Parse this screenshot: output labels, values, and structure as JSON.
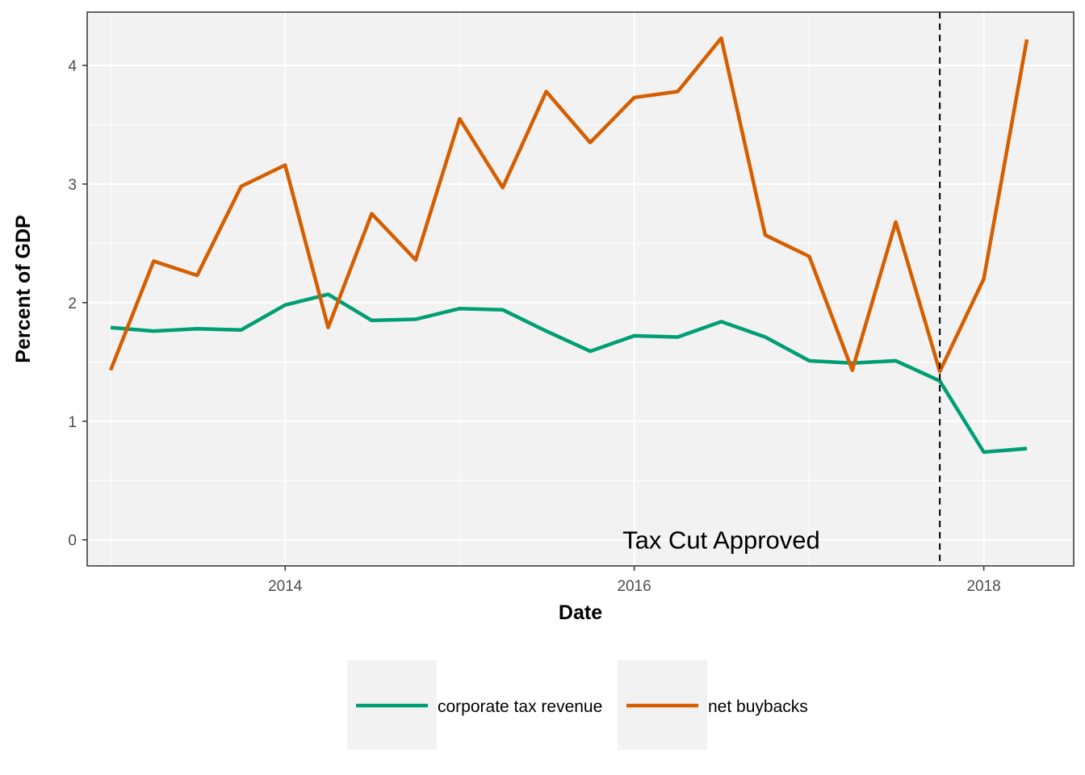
{
  "colors": {
    "panel_bg": "#f2f2f2",
    "grid": "#ffffff",
    "tax": "#009e73",
    "buybacks": "#d55e00",
    "vline": "#000000"
  },
  "chart_data": {
    "type": "line",
    "xlabel": "Date",
    "ylabel": "Percent of GDP",
    "xlim": [
      "2012-11-13",
      "2018-07-08"
    ],
    "ylim": [
      -0.22,
      4.45
    ],
    "x_ticks": [
      {
        "date": "2014-01-01",
        "label": "2014"
      },
      {
        "date": "2016-01-01",
        "label": "2016"
      },
      {
        "date": "2018-01-01",
        "label": "2018"
      }
    ],
    "y_ticks": [
      {
        "value": 0,
        "label": "0"
      },
      {
        "value": 1,
        "label": "1"
      },
      {
        "value": 2,
        "label": "2"
      },
      {
        "value": 3,
        "label": "3"
      },
      {
        "value": 4,
        "label": "4"
      }
    ],
    "grid": true,
    "legend_position": "bottom",
    "x": [
      "2013-01-01",
      "2013-04-01",
      "2013-07-01",
      "2013-10-01",
      "2014-01-01",
      "2014-04-01",
      "2014-07-01",
      "2014-10-01",
      "2015-01-01",
      "2015-04-01",
      "2015-07-01",
      "2015-10-01",
      "2016-01-01",
      "2016-04-01",
      "2016-07-01",
      "2016-10-01",
      "2017-01-01",
      "2017-04-01",
      "2017-07-01",
      "2017-10-01",
      "2018-01-01",
      "2018-04-01"
    ],
    "series": [
      {
        "key": "tax",
        "name": "corporate tax revenue",
        "values": [
          1.79,
          1.76,
          1.78,
          1.77,
          1.98,
          2.07,
          1.85,
          1.86,
          1.95,
          1.94,
          1.76,
          1.59,
          1.72,
          1.71,
          1.84,
          1.71,
          1.51,
          1.49,
          1.51,
          1.34,
          0.74,
          0.77
        ]
      },
      {
        "key": "buybacks",
        "name": "net buybacks",
        "values": [
          1.43,
          2.35,
          2.23,
          2.98,
          3.16,
          1.79,
          2.75,
          2.36,
          3.55,
          2.97,
          3.78,
          3.35,
          3.73,
          3.78,
          4.23,
          2.57,
          2.39,
          1.43,
          2.68,
          1.42,
          2.2,
          4.22
        ]
      }
    ],
    "vline": {
      "date": "2017-10-01"
    },
    "annotation": {
      "text": "Tax Cut Approved",
      "date": "2016-07-01",
      "y": 0
    }
  }
}
